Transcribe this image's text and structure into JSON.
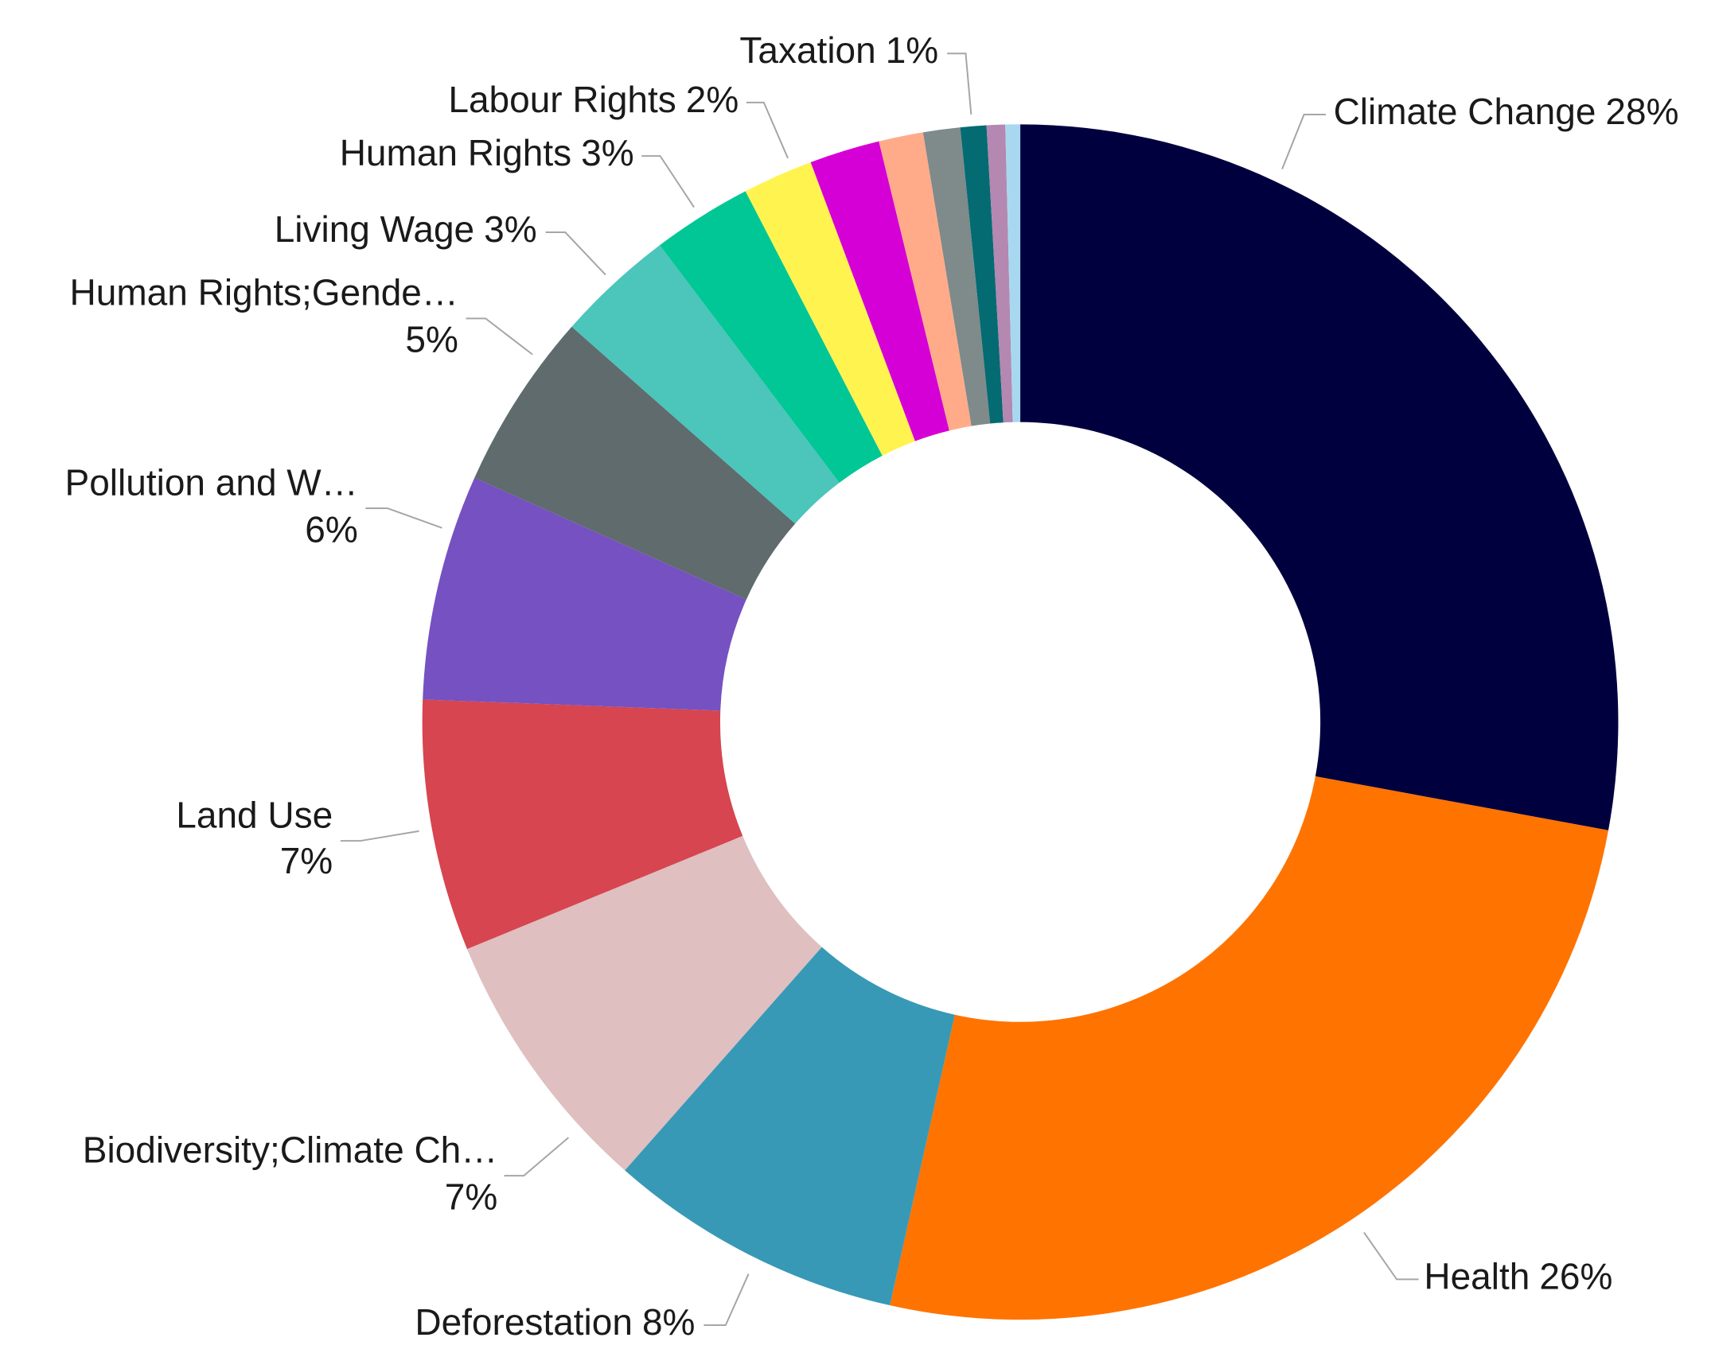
{
  "chart_data": {
    "type": "donut",
    "categories": [
      "Climate Change",
      "Health",
      "Deforestation",
      "Biodiversity;Climate Ch…",
      "Land Use",
      "Pollution and W…",
      "Human Rights;Gende…",
      "Living Wage",
      "Human Rights",
      "Labour Rights",
      null,
      null,
      null,
      "Taxation",
      null,
      null
    ],
    "values": [
      27.9,
      25.6,
      8.0,
      7.3,
      6.8,
      6.1,
      4.8,
      3.2,
      2.7,
      1.9,
      1.9,
      1.2,
      1.0,
      0.7,
      0.5,
      0.4
    ],
    "value_labels": [
      "28%",
      "26%",
      "8%",
      "7%",
      "7%",
      "6%",
      "5%",
      "3%",
      "3%",
      "2%",
      null,
      null,
      null,
      "1%",
      null,
      null
    ],
    "colors": [
      "#00003f",
      "#ff7300",
      "#3799b6",
      "#dfbfc0",
      "#d64550",
      "#7651c1",
      "#5f6b6d",
      "#4cc5bb",
      "#00c795",
      "#fff44f",
      "#d500d5",
      "#ffab8a",
      "#7f8a8a",
      "#046b72",
      "#b488b0",
      "#a8d8f0"
    ]
  }
}
